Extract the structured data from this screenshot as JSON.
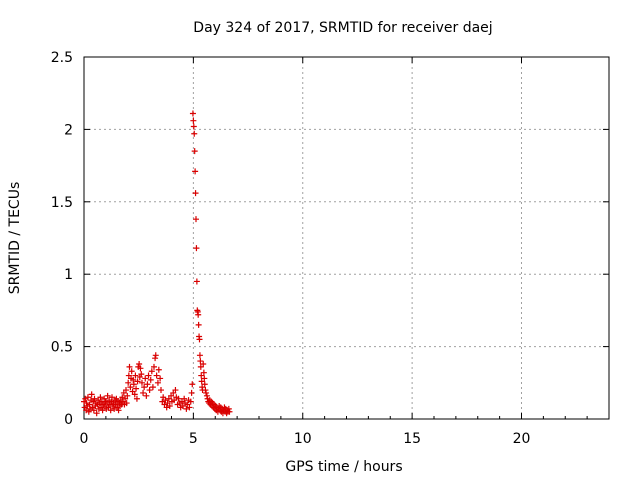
{
  "chart_data": {
    "type": "scatter",
    "title": "Day 324 of 2017, SRMTID for receiver daej",
    "xlabel": "GPS time / hours",
    "ylabel": "SRMTID / TECUs",
    "xlim": [
      0,
      24
    ],
    "ylim": [
      0,
      2.5
    ],
    "x_ticks": [
      0,
      5,
      10,
      15,
      20
    ],
    "x_tick_labels": [
      "0",
      "5",
      "10",
      "15",
      "20"
    ],
    "y_ticks": [
      0,
      0.5,
      1,
      1.5,
      2,
      2.5
    ],
    "y_tick_labels": [
      "0",
      "0.5",
      "1",
      "1.5",
      "2",
      "2.5"
    ],
    "grid": true,
    "marker": "+",
    "marker_color": "#d90000",
    "series": [
      {
        "name": "SRMTID",
        "points": [
          [
            0.0,
            0.12
          ],
          [
            0.03,
            0.08
          ],
          [
            0.06,
            0.14
          ],
          [
            0.1,
            0.06
          ],
          [
            0.12,
            0.11
          ],
          [
            0.15,
            0.09
          ],
          [
            0.18,
            0.15
          ],
          [
            0.22,
            0.05
          ],
          [
            0.25,
            0.1
          ],
          [
            0.28,
            0.07
          ],
          [
            0.32,
            0.13
          ],
          [
            0.35,
            0.17
          ],
          [
            0.38,
            0.08
          ],
          [
            0.42,
            0.12
          ],
          [
            0.45,
            0.06
          ],
          [
            0.48,
            0.14
          ],
          [
            0.52,
            0.09
          ],
          [
            0.55,
            0.11
          ],
          [
            0.58,
            0.04
          ],
          [
            0.62,
            0.1
          ],
          [
            0.65,
            0.13
          ],
          [
            0.68,
            0.07
          ],
          [
            0.72,
            0.11
          ],
          [
            0.75,
            0.15
          ],
          [
            0.78,
            0.08
          ],
          [
            0.82,
            0.12
          ],
          [
            0.85,
            0.06
          ],
          [
            0.88,
            0.1
          ],
          [
            0.92,
            0.14
          ],
          [
            0.95,
            0.09
          ],
          [
            0.98,
            0.12
          ],
          [
            1.02,
            0.07
          ],
          [
            1.05,
            0.11
          ],
          [
            1.08,
            0.16
          ],
          [
            1.12,
            0.08
          ],
          [
            1.15,
            0.13
          ],
          [
            1.18,
            0.1
          ],
          [
            1.22,
            0.06
          ],
          [
            1.25,
            0.12
          ],
          [
            1.28,
            0.15
          ],
          [
            1.32,
            0.09
          ],
          [
            1.35,
            0.11
          ],
          [
            1.38,
            0.07
          ],
          [
            1.42,
            0.13
          ],
          [
            1.45,
            0.1
          ],
          [
            1.48,
            0.14
          ],
          [
            1.52,
            0.08
          ],
          [
            1.55,
            0.12
          ],
          [
            1.58,
            0.06
          ],
          [
            1.62,
            0.11
          ],
          [
            1.65,
            0.09
          ],
          [
            1.68,
            0.13
          ],
          [
            1.72,
            0.1
          ],
          [
            1.75,
            0.15
          ],
          [
            1.78,
            0.12
          ],
          [
            1.82,
            0.18
          ],
          [
            1.85,
            0.1
          ],
          [
            1.88,
            0.14
          ],
          [
            1.92,
            0.2
          ],
          [
            1.95,
            0.11
          ],
          [
            1.98,
            0.16
          ],
          [
            2.02,
            0.25
          ],
          [
            2.05,
            0.3
          ],
          [
            2.08,
            0.36
          ],
          [
            2.12,
            0.22
          ],
          [
            2.15,
            0.28
          ],
          [
            2.18,
            0.33
          ],
          [
            2.22,
            0.19
          ],
          [
            2.25,
            0.27
          ],
          [
            2.28,
            0.24
          ],
          [
            2.32,
            0.17
          ],
          [
            2.35,
            0.3
          ],
          [
            2.38,
            0.21
          ],
          [
            2.42,
            0.14
          ],
          [
            2.45,
            0.26
          ],
          [
            2.48,
            0.36
          ],
          [
            2.52,
            0.38
          ],
          [
            2.55,
            0.29
          ],
          [
            2.58,
            0.35
          ],
          [
            2.62,
            0.31
          ],
          [
            2.65,
            0.25
          ],
          [
            2.7,
            0.18
          ],
          [
            2.75,
            0.22
          ],
          [
            2.8,
            0.28
          ],
          [
            2.85,
            0.16
          ],
          [
            2.9,
            0.24
          ],
          [
            2.95,
            0.3
          ],
          [
            3.0,
            0.2
          ],
          [
            3.05,
            0.27
          ],
          [
            3.1,
            0.33
          ],
          [
            3.15,
            0.22
          ],
          [
            3.2,
            0.36
          ],
          [
            3.25,
            0.42
          ],
          [
            3.28,
            0.44
          ],
          [
            3.32,
            0.3
          ],
          [
            3.38,
            0.25
          ],
          [
            3.42,
            0.34
          ],
          [
            3.48,
            0.28
          ],
          [
            3.52,
            0.2
          ],
          [
            3.58,
            0.12
          ],
          [
            3.62,
            0.15
          ],
          [
            3.68,
            0.1
          ],
          [
            3.72,
            0.13
          ],
          [
            3.78,
            0.08
          ],
          [
            3.82,
            0.11
          ],
          [
            3.88,
            0.14
          ],
          [
            3.92,
            0.09
          ],
          [
            3.98,
            0.16
          ],
          [
            4.02,
            0.12
          ],
          [
            4.08,
            0.18
          ],
          [
            4.12,
            0.13
          ],
          [
            4.18,
            0.2
          ],
          [
            4.22,
            0.15
          ],
          [
            4.28,
            0.1
          ],
          [
            4.32,
            0.14
          ],
          [
            4.38,
            0.11
          ],
          [
            4.42,
            0.08
          ],
          [
            4.48,
            0.12
          ],
          [
            4.52,
            0.09
          ],
          [
            4.58,
            0.14
          ],
          [
            4.62,
            0.11
          ],
          [
            4.68,
            0.07
          ],
          [
            4.72,
            0.1
          ],
          [
            4.78,
            0.13
          ],
          [
            4.82,
            0.08
          ],
          [
            4.88,
            0.12
          ],
          [
            4.92,
            0.18
          ],
          [
            4.95,
            0.24
          ],
          [
            4.98,
            2.11
          ],
          [
            5.0,
            2.06
          ],
          [
            5.02,
            2.02
          ],
          [
            5.04,
            1.97
          ],
          [
            5.06,
            1.85
          ],
          [
            5.08,
            1.71
          ],
          [
            5.1,
            1.56
          ],
          [
            5.12,
            1.38
          ],
          [
            5.14,
            1.18
          ],
          [
            5.16,
            0.95
          ],
          [
            5.18,
            0.75
          ],
          [
            5.2,
            0.74
          ],
          [
            5.22,
            0.72
          ],
          [
            5.24,
            0.65
          ],
          [
            5.26,
            0.57
          ],
          [
            5.28,
            0.55
          ],
          [
            5.3,
            0.44
          ],
          [
            5.32,
            0.4
          ],
          [
            5.34,
            0.36
          ],
          [
            5.36,
            0.3
          ],
          [
            5.38,
            0.26
          ],
          [
            5.4,
            0.22
          ],
          [
            5.42,
            0.2
          ],
          [
            5.45,
            0.38
          ],
          [
            5.48,
            0.32
          ],
          [
            5.5,
            0.28
          ],
          [
            5.52,
            0.24
          ],
          [
            5.55,
            0.2
          ],
          [
            5.58,
            0.18
          ],
          [
            5.62,
            0.16
          ],
          [
            5.65,
            0.14
          ],
          [
            5.68,
            0.12
          ],
          [
            5.72,
            0.11
          ],
          [
            5.75,
            0.13
          ],
          [
            5.78,
            0.1
          ],
          [
            5.82,
            0.12
          ],
          [
            5.85,
            0.09
          ],
          [
            5.88,
            0.11
          ],
          [
            5.92,
            0.08
          ],
          [
            5.95,
            0.1
          ],
          [
            5.98,
            0.07
          ],
          [
            6.02,
            0.09
          ],
          [
            6.05,
            0.06
          ],
          [
            6.08,
            0.08
          ],
          [
            6.12,
            0.05
          ],
          [
            6.15,
            0.07
          ],
          [
            6.18,
            0.09
          ],
          [
            6.22,
            0.06
          ],
          [
            6.25,
            0.08
          ],
          [
            6.28,
            0.05
          ],
          [
            6.32,
            0.07
          ],
          [
            6.35,
            0.04
          ],
          [
            6.38,
            0.06
          ],
          [
            6.42,
            0.08
          ],
          [
            6.45,
            0.05
          ],
          [
            6.48,
            0.07
          ],
          [
            6.52,
            0.04
          ],
          [
            6.55,
            0.06
          ],
          [
            6.58,
            0.05
          ],
          [
            6.62,
            0.07
          ],
          [
            6.65,
            0.05
          ]
        ]
      }
    ]
  }
}
